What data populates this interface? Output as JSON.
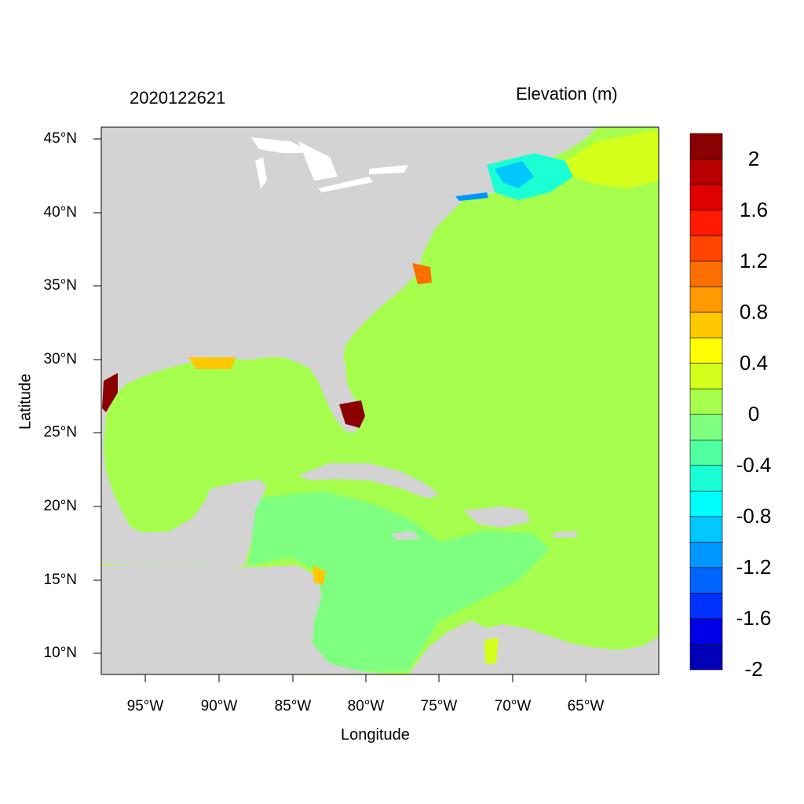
{
  "map": {
    "time_label": "2020122621",
    "variable_label": "Elevation (m)",
    "x_axis_label": "Longitude",
    "y_axis_label": "Latitude",
    "lat_ticks": [
      "45°N",
      "40°N",
      "35°N",
      "30°N",
      "25°N",
      "20°N",
      "15°N",
      "10°N"
    ],
    "lon_ticks": [
      "95°W",
      "90°W",
      "85°W",
      "80°W",
      "75°W",
      "70°W",
      "65°W"
    ],
    "colors": {
      "land": "#d3d3d3",
      "ocean_near_zero": "#a6ff4c",
      "slightly_negative": "#7fff7f"
    }
  },
  "colorbar": {
    "tick_labels": [
      "2",
      "1.6",
      "1.2",
      "0.8",
      "0.4",
      "0",
      "-0.4",
      "-0.8",
      "-1.2",
      "-1.6",
      "-2"
    ],
    "bands": [
      "#8b0000",
      "#b80000",
      "#e00000",
      "#ff1a00",
      "#ff4500",
      "#ff6f00",
      "#ff9a00",
      "#ffc800",
      "#ffff00",
      "#d4ff1a",
      "#a6ff4c",
      "#7fff7f",
      "#50ffa0",
      "#1affd4",
      "#00ffff",
      "#00c8ff",
      "#0096ff",
      "#0064ff",
      "#0032ff",
      "#0000e6",
      "#0000b8"
    ]
  }
}
